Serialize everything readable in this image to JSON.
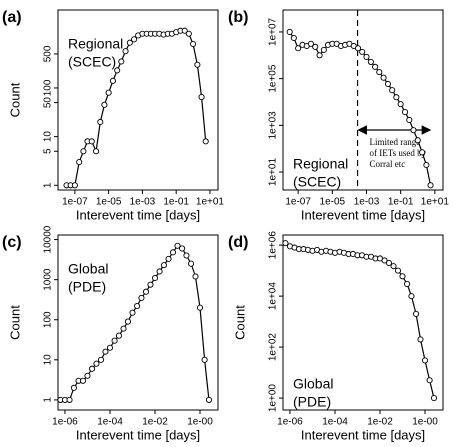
{
  "chart_data": [
    {
      "type": "line",
      "panel_label": "(a)",
      "xlabel": "Interevent time [days]",
      "ylabel": "Count",
      "note_lines": [
        "Regional",
        "(SCEC)"
      ],
      "log_x": true,
      "log_y": true,
      "x": [
        3.2e-08,
        5.6e-08,
        1e-07,
        1.8e-07,
        3.2e-07,
        5.6e-07,
        1e-06,
        1.8e-06,
        3.2e-06,
        5.6e-06,
        1e-05,
        1.8e-05,
        3.2e-05,
        5.6e-05,
        0.0001,
        0.00018,
        0.00032,
        0.00056,
        0.001,
        0.0018,
        0.0032,
        0.0056,
        0.01,
        0.018,
        0.032,
        0.056,
        0.1,
        0.18,
        0.32,
        0.56,
        1,
        1.8,
        3.2,
        5.6
      ],
      "values": [
        1,
        1,
        1,
        3,
        5,
        8,
        8,
        5,
        20,
        45,
        80,
        140,
        230,
        350,
        570,
        850,
        1000,
        1200,
        1300,
        1300,
        1300,
        1300,
        1300,
        1250,
        1300,
        1300,
        1400,
        1500,
        1500,
        1300,
        800,
        300,
        65,
        8
      ],
      "color": "#000000",
      "xlim": [
        1e-08,
        30
      ],
      "ylim": [
        0.8,
        4000
      ],
      "xticks": [
        {
          "value": 1e-07,
          "label": "1e-07"
        },
        {
          "value": 1e-05,
          "label": "1e-05"
        },
        {
          "value": 0.001,
          "label": "1e-03"
        },
        {
          "value": 0.1,
          "label": "1e-01"
        },
        {
          "value": 10,
          "label": "1e+01"
        }
      ],
      "yticks": [
        1,
        5,
        10,
        50,
        100,
        500
      ]
    },
    {
      "type": "line",
      "panel_label": "(b)",
      "xlabel": "Interevent time [days]",
      "note_lines": [
        "Regional",
        "(SCEC)"
      ],
      "log_x": true,
      "log_y": true,
      "x": [
        3.2e-08,
        5.6e-08,
        1e-07,
        1.8e-07,
        3.2e-07,
        5.6e-07,
        1e-06,
        1.8e-06,
        3.2e-06,
        5.6e-06,
        1e-05,
        1.8e-05,
        3.2e-05,
        5.6e-05,
        0.0001,
        0.00018,
        0.00032,
        0.00056,
        0.001,
        0.0018,
        0.0032,
        0.0056,
        0.01,
        0.018,
        0.032,
        0.056,
        0.1,
        0.18,
        0.32,
        0.56,
        1,
        1.8,
        3.2,
        5.6
      ],
      "values": [
        10000000,
        5500000,
        2000000,
        2800000,
        2500000,
        3100000,
        2300000,
        1000000,
        1700000,
        2800000,
        3100000,
        3100000,
        2500000,
        2800000,
        3100000,
        2500000,
        2000000,
        1400000,
        850000,
        520000,
        320000,
        190000,
        110000,
        59000,
        32000,
        16000,
        8100,
        3700,
        1700,
        620,
        230,
        70,
        20,
        2.7
      ],
      "color": "#000000",
      "xlim": [
        1.3e-08,
        30
      ],
      "ylim": [
        1.7,
        87000000
      ],
      "xticks": [
        {
          "value": 1e-07,
          "label": "1e-07"
        },
        {
          "value": 1e-05,
          "label": "1e-05"
        },
        {
          "value": 0.001,
          "label": "1e-03"
        },
        {
          "value": 0.1,
          "label": "1e-01"
        },
        {
          "value": 10,
          "label": "1e+01"
        }
      ],
      "yticks": [
        {
          "value": 10000000,
          "label": "1e+07"
        },
        {
          "value": 100000,
          "label": "1e+05"
        },
        {
          "value": 1000,
          "label": "1e+03"
        },
        {
          "value": 10,
          "label": "1e+01"
        }
      ],
      "vline": 0.0003,
      "arrow": [
        0.0003,
        6
      ],
      "annotation_lines": [
        "Limited range",
        "of IETs used by",
        "Corral etc"
      ]
    },
    {
      "type": "line",
      "panel_label": "(c)",
      "xlabel": "Interevent time [days]",
      "ylabel": "Count",
      "note_lines": [
        "Global",
        "(PDE)"
      ],
      "log_x": true,
      "log_y": true,
      "x": [
        6.3e-07,
        1e-06,
        1.6e-06,
        2.5e-06,
        4e-06,
        6.3e-06,
        1e-05,
        1.6e-05,
        2.5e-05,
        4e-05,
        6.3e-05,
        0.0001,
        0.00016,
        0.00025,
        0.0004,
        0.00063,
        0.001,
        0.0016,
        0.0025,
        0.004,
        0.0063,
        0.01,
        0.016,
        0.025,
        0.04,
        0.063,
        0.1,
        0.16,
        0.25,
        0.4,
        0.63,
        1,
        1.6,
        2.5
      ],
      "values": [
        1,
        1,
        1,
        2,
        3,
        3,
        4,
        6,
        8,
        10,
        16,
        20,
        30,
        40,
        60,
        90,
        150,
        220,
        350,
        500,
        750,
        1100,
        1600,
        2300,
        3300,
        4800,
        7000,
        6000,
        4000,
        2500,
        1200,
        200,
        10,
        1
      ],
      "color": "#000000",
      "xlim": [
        4.9e-07,
        6.3
      ],
      "ylim": [
        0.56,
        13000
      ],
      "xticks": [
        {
          "value": 1e-06,
          "label": "1e-06"
        },
        {
          "value": 0.0001,
          "label": "1e-04"
        },
        {
          "value": 0.01,
          "label": "1e-02"
        },
        {
          "value": 1,
          "label": "1e-00"
        }
      ],
      "yticks": [
        1,
        10,
        100,
        1000,
        10000
      ]
    },
    {
      "type": "line",
      "panel_label": "(d)",
      "xlabel": "Interevent time [days]",
      "ylabel": "Count",
      "note_lines": [
        "Global",
        "(PDE)"
      ],
      "log_x": true,
      "log_y": true,
      "x": [
        6.3e-07,
        1e-06,
        1.6e-06,
        2.5e-06,
        4e-06,
        6.3e-06,
        1e-05,
        1.6e-05,
        2.5e-05,
        4e-05,
        6.3e-05,
        0.0001,
        0.00016,
        0.00025,
        0.0004,
        0.00063,
        0.001,
        0.0016,
        0.0025,
        0.004,
        0.0063,
        0.01,
        0.016,
        0.025,
        0.04,
        0.063,
        0.1,
        0.16,
        0.25,
        0.4,
        0.63,
        1,
        1.6,
        2.5
      ],
      "values": [
        1200000,
        900000,
        800000,
        700000,
        700000,
        650000,
        600000,
        650000,
        550000,
        600000,
        550000,
        500000,
        550000,
        500000,
        450000,
        450000,
        400000,
        400000,
        350000,
        350000,
        300000,
        300000,
        250000,
        200000,
        150000,
        100000,
        60000,
        30000,
        10000,
        2000,
        200,
        30,
        5,
        1
      ],
      "color": "#000000",
      "xlim": [
        4.9e-07,
        6.3
      ],
      "ylim": [
        0.34,
        2500000
      ],
      "xticks": [
        {
          "value": 1e-06,
          "label": "1e-06"
        },
        {
          "value": 0.0001,
          "label": "1e-04"
        },
        {
          "value": 0.01,
          "label": "1e-02"
        },
        {
          "value": 1,
          "label": "1e-00"
        }
      ],
      "yticks": [
        {
          "value": 1000000,
          "label": "1e+06"
        },
        {
          "value": 10000,
          "label": "1e+04"
        },
        {
          "value": 100,
          "label": "1e+02"
        },
        {
          "value": 1,
          "label": "1e+00"
        }
      ]
    }
  ]
}
